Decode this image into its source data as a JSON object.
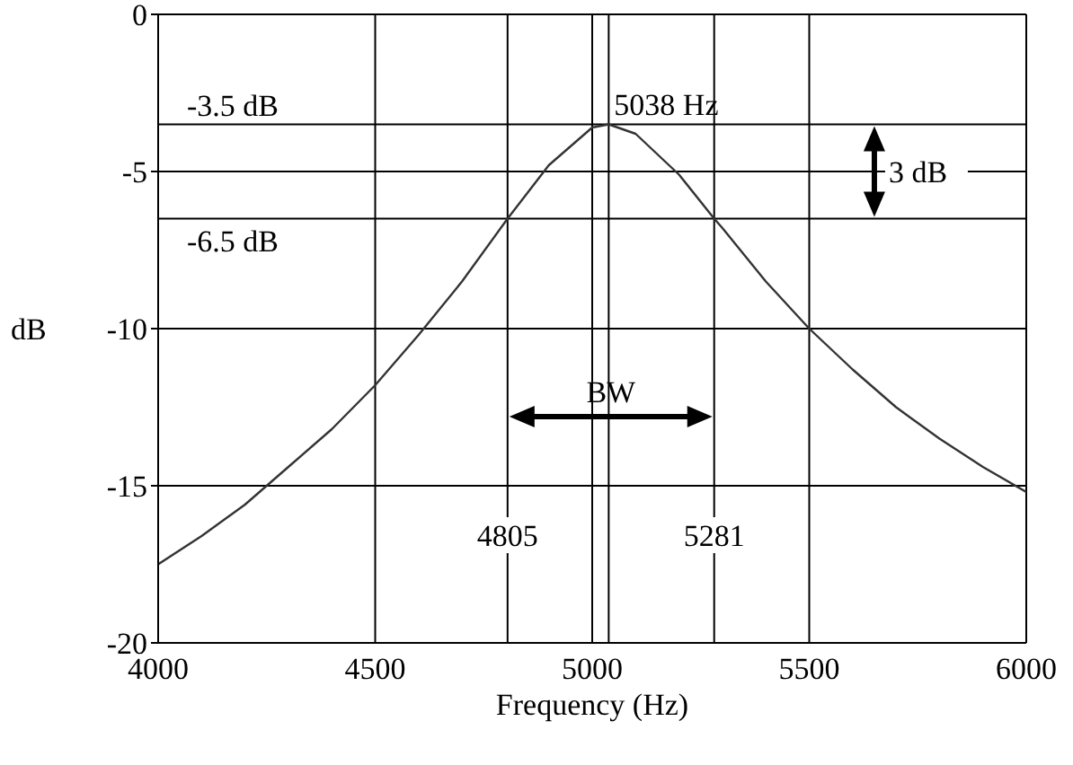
{
  "chart_data": {
    "type": "line",
    "xlabel": "Frequency (Hz)",
    "ylabel": "dB",
    "x": [
      4000,
      4100,
      4200,
      4300,
      4400,
      4500,
      4600,
      4700,
      4805,
      4900,
      5000,
      5038,
      5100,
      5200,
      5281,
      5300,
      5400,
      5500,
      5600,
      5700,
      5800,
      5900,
      6000
    ],
    "values": [
      -17.5,
      -16.6,
      -15.6,
      -14.4,
      -13.2,
      -11.8,
      -10.2,
      -8.5,
      -6.5,
      -4.8,
      -3.6,
      -3.5,
      -3.8,
      -5.1,
      -6.5,
      -6.8,
      -8.5,
      -10.0,
      -11.3,
      -12.5,
      -13.5,
      -14.4,
      -15.2
    ],
    "color": "#333333",
    "marker": "none",
    "grid": true,
    "xlim": [
      4000,
      6000
    ],
    "xticks": [
      4000,
      4500,
      5000,
      5500,
      6000
    ],
    "ylim": [
      -20,
      0
    ],
    "yticks": [
      -20,
      -15,
      -10,
      -5,
      0
    ],
    "ref_lines": [
      {
        "axis": "x",
        "value": 5038,
        "label": "5038 Hz"
      },
      {
        "axis": "x",
        "value": 4805,
        "label": "4805"
      },
      {
        "axis": "x",
        "value": 5281,
        "label": "5281"
      },
      {
        "axis": "y",
        "value": -3.5,
        "label": "-3.5  dB"
      },
      {
        "axis": "y",
        "value": -6.5,
        "label": "-6.5  dB"
      }
    ],
    "annotations": [
      {
        "text": "BW",
        "x": 5043,
        "y": -12.8
      },
      "3  dB"
    ]
  }
}
